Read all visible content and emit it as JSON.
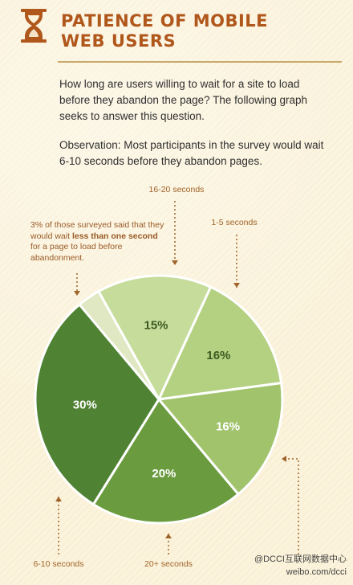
{
  "header": {
    "title_line1": "PATIENCE OF MOBILE",
    "title_line2": "WEB USERS"
  },
  "intro": "How long are users willing to wait for a site to load before they abandon the page? The following graph seeks to answer this question.",
  "observation": "Observation: Most participants in the survey would wait 6-10 seconds before they abandon pages.",
  "callout": {
    "part1": "3% of those surveyed said that they would wait ",
    "bold": "less than one second",
    "part2": " for a page to load before abandonment."
  },
  "watermark": {
    "line1": "@DCCI互联网数据中心",
    "line2": "weibo.com/dcci"
  },
  "colors": {
    "title": "#b0571c",
    "arrow": "#a0642a",
    "label": "#a0642a"
  },
  "chart_data": {
    "type": "pie",
    "slices": [
      {
        "label": "",
        "value": 3,
        "display": "",
        "color": "#dfe8c2"
      },
      {
        "label": "16-20 seconds",
        "value": 15,
        "display": "15%",
        "color": "#c6dc9b"
      },
      {
        "label": "1-5 seconds",
        "value": 16,
        "display": "16%",
        "color": "#b4d081"
      },
      {
        "label": "",
        "value": 16,
        "display": "16%",
        "color": "#a0c36c"
      },
      {
        "label": "20+ seconds",
        "value": 20,
        "display": "20%",
        "color": "#6a9b3f"
      },
      {
        "label": "6-10 seconds",
        "value": 30,
        "display": "30%",
        "color": "#4f8232"
      }
    ]
  }
}
